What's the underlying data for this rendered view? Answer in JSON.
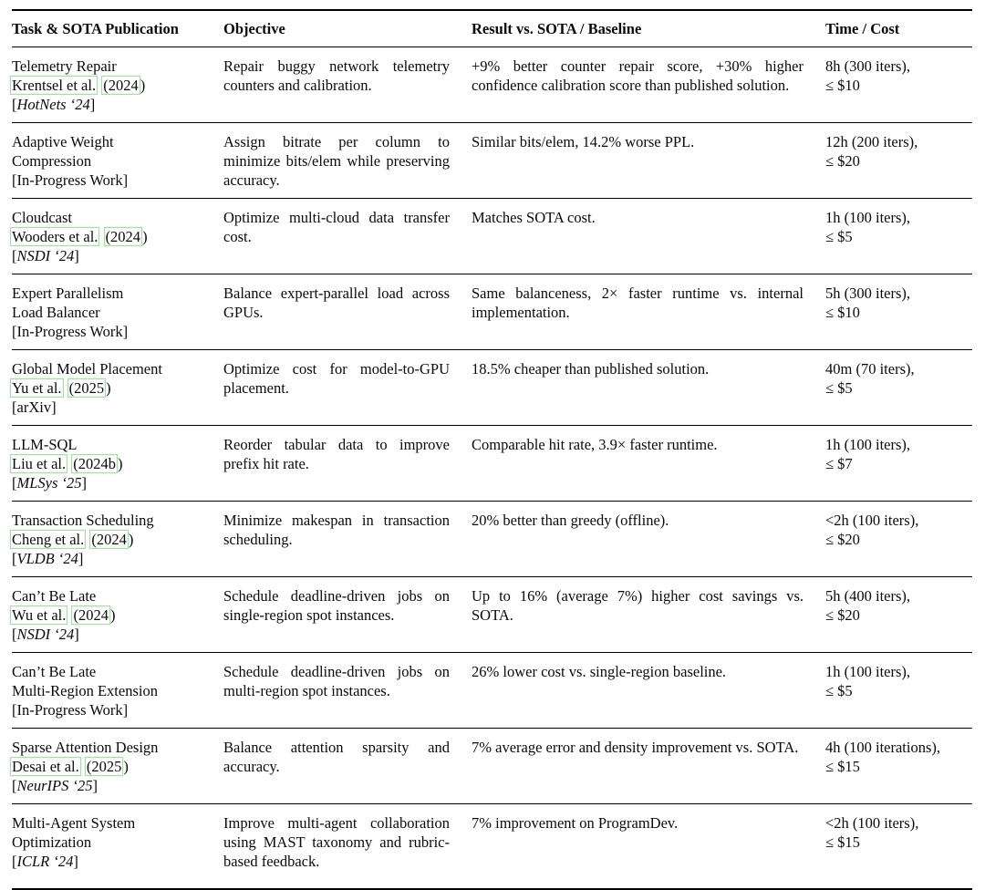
{
  "link_box_color": "#90ee90",
  "table": {
    "headers": [
      "Task & SOTA Publication",
      "Objective",
      "Result vs. SOTA / Baseline",
      "Time / Cost"
    ],
    "rows": [
      {
        "task_lines": [
          "Telemetry Repair"
        ],
        "citation": {
          "author": "Krentsel et al.",
          "year_boxed": "(2024",
          "year_after": ")"
        },
        "venue": {
          "prefix": "[",
          "label": "HotNets ‘24",
          "suffix": "]",
          "italic": true
        },
        "objective": "Repair buggy network telemetry counters and calibration.",
        "result": "+9% better counter repair score, +30% higher confidence calibration score than published solution.",
        "time": "8h (300 iters),",
        "cost": "≤ $10"
      },
      {
        "task_lines": [
          "Adaptive Weight",
          "Compression"
        ],
        "citation": null,
        "venue": {
          "prefix": "[",
          "label": "In-Progress Work",
          "suffix": "]",
          "italic": false
        },
        "objective": "Assign bitrate per column to minimize bits/elem while preserving accuracy.",
        "result": "Similar bits/elem, 14.2% worse PPL.",
        "time": "12h (200 iters),",
        "cost": "≤ $20"
      },
      {
        "task_lines": [
          "Cloudcast"
        ],
        "citation": {
          "author": "Wooders et al.",
          "year_boxed": "(2024",
          "year_after": ")"
        },
        "venue": {
          "prefix": "[",
          "label": "NSDI ‘24",
          "suffix": "]",
          "italic": true
        },
        "objective": "Optimize multi-cloud data transfer cost.",
        "result": "Matches SOTA cost.",
        "time": "1h (100 iters),",
        "cost": "≤ $5"
      },
      {
        "task_lines": [
          "Expert Parallelism",
          "Load Balancer"
        ],
        "citation": null,
        "venue": {
          "prefix": "[",
          "label": "In-Progress Work",
          "suffix": "]",
          "italic": false
        },
        "objective": "Balance expert-parallel load across GPUs.",
        "result": "Same balanceness, 2× faster runtime vs. internal implementation.",
        "time": "5h (300 iters),",
        "cost": "≤ $10"
      },
      {
        "task_lines": [
          "Global Model Placement"
        ],
        "citation": {
          "author": "Yu et al.",
          "year_boxed": "(2025",
          "year_after": ")"
        },
        "venue": {
          "prefix": "[",
          "label": "arXiv",
          "suffix": "]",
          "italic": false
        },
        "objective": "Optimize cost for model-to-GPU placement.",
        "result": "18.5% cheaper than published solution.",
        "time": "40m (70 iters),",
        "cost": "≤ $5"
      },
      {
        "task_lines": [
          "LLM-SQL"
        ],
        "citation": {
          "author": "Liu et al.",
          "year_boxed": "(2024b",
          "year_after": ")"
        },
        "venue": {
          "prefix": "[",
          "label": "MLSys ‘25",
          "suffix": "]",
          "italic": true
        },
        "objective": "Reorder tabular data to improve prefix hit rate.",
        "result": "Comparable hit rate, 3.9× faster runtime.",
        "time": "1h (100 iters),",
        "cost": "≤ $7"
      },
      {
        "task_lines": [
          "Transaction Scheduling"
        ],
        "citation": {
          "author": "Cheng et al.",
          "year_boxed": "(2024",
          "year_after": ")"
        },
        "venue": {
          "prefix": "[",
          "label": "VLDB ‘24",
          "suffix": "]",
          "italic": true
        },
        "objective": "Minimize makespan in transaction scheduling.",
        "result": "20% better than greedy (offline).",
        "time": "<2h (100 iters),",
        "cost": "≤ $20"
      },
      {
        "task_lines": [
          "Can’t Be Late"
        ],
        "citation": {
          "author": "Wu et al.",
          "year_boxed": "(2024",
          "year_after": ")"
        },
        "venue": {
          "prefix": "[",
          "label": "NSDI ‘24",
          "suffix": "]",
          "italic": true
        },
        "objective": "Schedule deadline-driven jobs on single-region spot instances.",
        "result": "Up to 16% (average 7%) higher cost savings vs. SOTA.",
        "time": "5h (400 iters),",
        "cost": "≤ $20"
      },
      {
        "task_lines": [
          "Can’t Be Late",
          "Multi-Region Extension"
        ],
        "citation": null,
        "venue": {
          "prefix": "[",
          "label": "In-Progress Work",
          "suffix": "]",
          "italic": false
        },
        "objective": "Schedule deadline-driven jobs on multi-region spot instances.",
        "result": "26% lower cost vs. single-region baseline.",
        "time": "1h (100 iters),",
        "cost": "≤ $5"
      },
      {
        "task_lines": [
          "Sparse Attention Design"
        ],
        "citation": {
          "author": "Desai et al.",
          "year_boxed": "(2025",
          "year_after": ")"
        },
        "venue": {
          "prefix": "[",
          "label": "NeurIPS ‘25",
          "suffix": "]",
          "italic": true
        },
        "objective": "Balance attention sparsity and accuracy.",
        "result": "7% average error and density improvement vs. SOTA.",
        "time": "4h (100 iterations),",
        "cost": "≤ $15"
      },
      {
        "task_lines": [
          "Multi-Agent System",
          "Optimization"
        ],
        "citation": null,
        "venue": {
          "prefix": "[",
          "label": "ICLR ‘24",
          "suffix": "]",
          "italic": true
        },
        "objective": "Improve multi-agent collaboration using MAST taxonomy and rubric-based feedback.",
        "result": "7% improvement on ProgramDev.",
        "time": "<2h (100 iters),",
        "cost": "≤ $15"
      }
    ]
  }
}
